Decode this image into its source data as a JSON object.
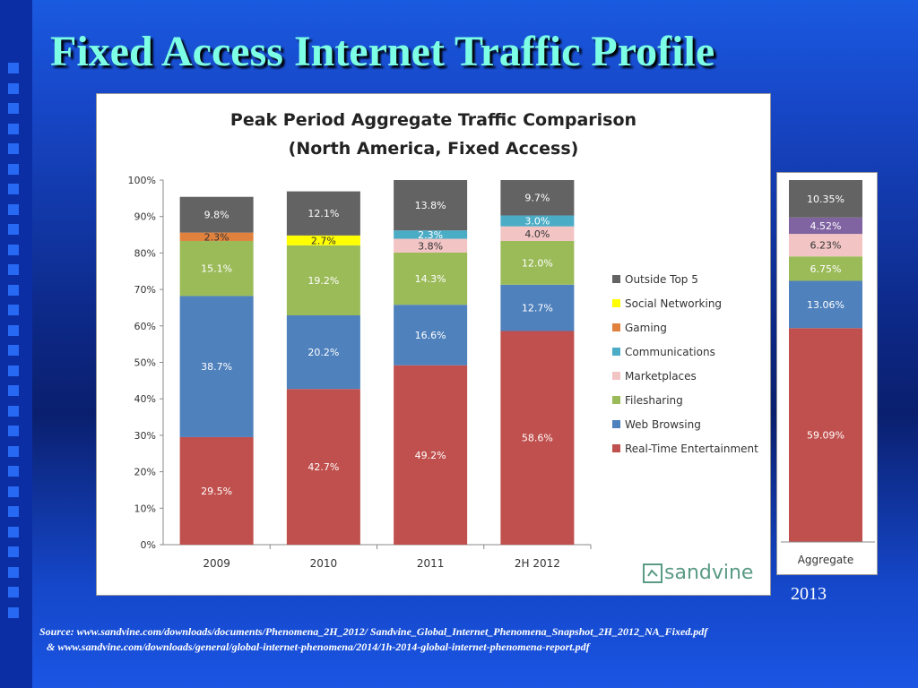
{
  "slide": {
    "title": "Fixed Access Internet Traffic Profile",
    "year_label": "2013",
    "source_line1": "Source: www.sandvine.com/downloads/documents/Phenomena_2H_2012/ Sandvine_Global_Internet_Phenomena_Snapshot_2H_2012_NA_Fixed.pdf",
    "source_line2": "& www.sandvine.com/downloads/general/global-internet-phenomena/2014/1h-2014-global-internet-phenomena-report.pdf",
    "logo_text": "sandvine"
  },
  "colors": {
    "Real-Time Entertainment": "#c0504d",
    "Web Browsing": "#4f81bd",
    "Filesharing": "#9bbb59",
    "Marketplaces": "#f2c4c4",
    "Communications": "#4bacc6",
    "Gaming": "#e0823d",
    "Social Networking": "#ffff00",
    "Outside Top 5": "#636363"
  },
  "chart_data": [
    {
      "type": "bar",
      "stacked": true,
      "title": "Peak Period Aggregate Traffic Comparison",
      "subtitle": "(North America, Fixed Access)",
      "categories": [
        "2009",
        "2010",
        "2011",
        "2H 2012"
      ],
      "ylim": [
        0,
        100
      ],
      "yticks": [
        "0%",
        "10%",
        "20%",
        "30%",
        "40%",
        "50%",
        "60%",
        "70%",
        "80%",
        "90%",
        "100%"
      ],
      "legend_position": "right",
      "legend": [
        "Outside Top 5",
        "Social Networking",
        "Gaming",
        "Communications",
        "Marketplaces",
        "Filesharing",
        "Web Browsing",
        "Real-Time Entertainment"
      ],
      "series": [
        {
          "name": "Real-Time Entertainment",
          "values": [
            29.5,
            42.7,
            49.2,
            58.6
          ],
          "labels": [
            "29.5%",
            "42.7%",
            "49.2%",
            "58.6%"
          ]
        },
        {
          "name": "Web Browsing",
          "values": [
            38.7,
            20.2,
            16.6,
            12.7
          ],
          "labels": [
            "38.7%",
            "20.2%",
            "16.6%",
            "12.7%"
          ]
        },
        {
          "name": "Filesharing",
          "values": [
            15.1,
            19.2,
            14.3,
            12.0
          ],
          "labels": [
            "15.1%",
            "19.2%",
            "14.3%",
            "12.0%"
          ]
        },
        {
          "name": "Marketplaces",
          "values": [
            0,
            0,
            3.8,
            4.0
          ],
          "labels": [
            "",
            "",
            "3.8%",
            "4.0%"
          ]
        },
        {
          "name": "Communications",
          "values": [
            0,
            0,
            2.3,
            3.0
          ],
          "labels": [
            "",
            "",
            "2.3%",
            "3.0%"
          ]
        },
        {
          "name": "Gaming",
          "values": [
            2.3,
            0,
            0,
            0
          ],
          "labels": [
            "2.3%",
            "",
            "",
            ""
          ]
        },
        {
          "name": "Social Networking",
          "values": [
            0,
            2.7,
            0,
            0
          ],
          "labels": [
            "",
            "2.7%",
            "",
            ""
          ]
        },
        {
          "name": "Outside Top 5",
          "values": [
            9.8,
            12.1,
            13.8,
            9.7
          ],
          "labels": [
            "9.8%",
            "12.1%",
            "13.8%",
            "9.7%"
          ]
        }
      ]
    },
    {
      "type": "bar",
      "stacked": true,
      "categories": [
        "Aggregate"
      ],
      "ylim": [
        0,
        100
      ],
      "series": [
        {
          "name": "Real-Time Entertainment",
          "values": [
            59.09
          ],
          "labels": [
            "59.09%"
          ]
        },
        {
          "name": "Web Browsing",
          "values": [
            13.06
          ],
          "labels": [
            "13.06%"
          ]
        },
        {
          "name": "Filesharing",
          "values": [
            6.75
          ],
          "labels": [
            "6.75%"
          ]
        },
        {
          "name": "Marketplaces",
          "values": [
            6.23
          ],
          "labels": [
            "6.23%"
          ]
        },
        {
          "name": "Outside Top 5 (purple)",
          "values": [
            4.52
          ],
          "labels": [
            "4.52%"
          ]
        },
        {
          "name": "Outside Top 5",
          "values": [
            10.35
          ],
          "labels": [
            "10.35%"
          ]
        }
      ]
    }
  ]
}
